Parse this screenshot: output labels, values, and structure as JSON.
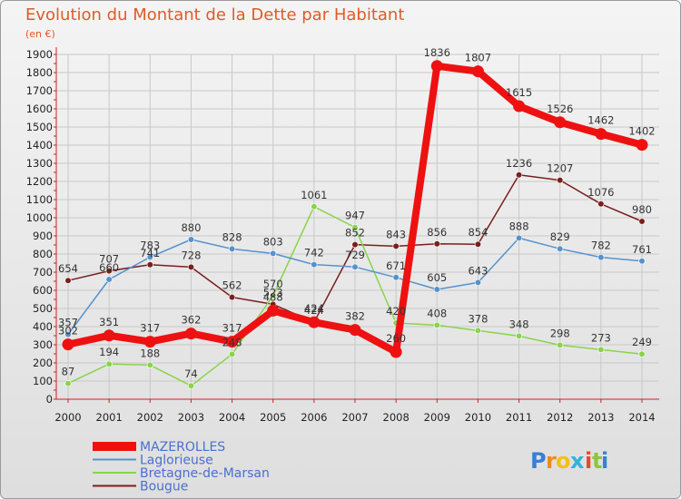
{
  "chart_data": {
    "type": "line",
    "title": "Evolution du Montant de la Dette par Habitant",
    "unit_label": "(en €)",
    "x": [
      "2000",
      "2001",
      "2002",
      "2003",
      "2004",
      "2005",
      "2006",
      "2007",
      "2008",
      "2009",
      "2010",
      "2011",
      "2012",
      "2013",
      "2014"
    ],
    "ylim": [
      0,
      1900
    ],
    "yticks": [
      0,
      100,
      200,
      300,
      400,
      500,
      600,
      700,
      800,
      900,
      1000,
      1100,
      1200,
      1300,
      1400,
      1500,
      1600,
      1700,
      1800,
      1900
    ],
    "grid": true,
    "legend_position": "bottom-left",
    "series": [
      {
        "name": "Bougue",
        "color": "#7a1e1e",
        "values": [
          654,
          707,
          741,
          728,
          562,
          523,
          424,
          852,
          843,
          856,
          854,
          1236,
          1207,
          1076,
          980
        ]
      },
      {
        "name": "Bretagne-de-Marsan",
        "color": "#88d44a",
        "values": [
          87,
          194,
          188,
          74,
          248,
          570,
          1061,
          947,
          420,
          408,
          378,
          348,
          298,
          273,
          249
        ]
      },
      {
        "name": "Laglorieuse",
        "color": "#5592cc",
        "values": [
          357,
          660,
          783,
          880,
          828,
          803,
          742,
          729,
          671,
          605,
          643,
          888,
          829,
          782,
          761
        ]
      },
      {
        "name": "MAZEROLLES",
        "color": "#ee1111",
        "values": [
          302,
          351,
          317,
          362,
          317,
          488,
          424,
          382,
          260,
          1836,
          1807,
          1615,
          1526,
          1462,
          1402
        ]
      }
    ]
  },
  "legend_order": [
    "MAZEROLLES",
    "Laglorieuse",
    "Bretagne-de-Marsan",
    "Bougue"
  ],
  "logo": {
    "letters": [
      "P",
      "r",
      "o",
      "x",
      "i",
      "t",
      "i"
    ],
    "colors": [
      "#3a7fd5",
      "#f08a1c",
      "#f2c114",
      "#2bb6d8",
      "#e84a2a",
      "#8cc63f",
      "#3a7fd5"
    ]
  }
}
